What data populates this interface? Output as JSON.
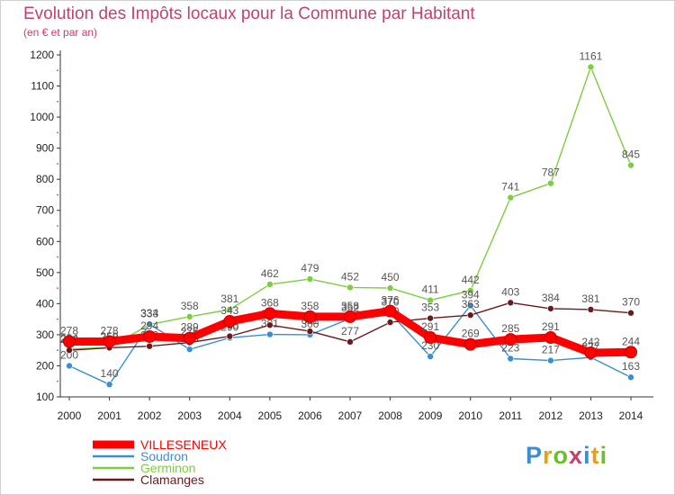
{
  "chart_data": {
    "type": "line",
    "title": "Evolution des Impôts locaux pour la Commune par Habitant",
    "subtitle": "(en € et par an)",
    "xlabel": "",
    "ylabel": "",
    "x": [
      "2000",
      "2001",
      "2002",
      "2003",
      "2004",
      "2005",
      "2006",
      "2007",
      "2008",
      "2009",
      "2010",
      "2011",
      "2012",
      "2013",
      "2014"
    ],
    "ylim": [
      100,
      1200
    ],
    "yticks": [
      100,
      200,
      300,
      400,
      500,
      600,
      700,
      800,
      900,
      1000,
      1100,
      1200
    ],
    "grid": false,
    "legend_position": "bottom-left",
    "series": [
      {
        "name": "VILLESENEUX",
        "color": "#ff0000",
        "values": [
          278,
          278,
          294,
          289,
          343,
          368,
          358,
          358,
          376,
          291,
          269,
          285,
          291,
          242,
          244
        ]
      },
      {
        "name": "Soudron",
        "color": "#3a8fd1",
        "values": [
          200,
          140,
          334,
          253,
          290,
          301,
          300,
          352,
          370,
          230,
          394,
          223,
          217,
          227,
          163
        ]
      },
      {
        "name": "Germinon",
        "color": "#7ccd3f",
        "values": [
          254,
          259,
          333,
          358,
          381,
          462,
          479,
          452,
          450,
          411,
          442,
          741,
          787,
          1161,
          845
        ]
      },
      {
        "name": "Clamanges",
        "color": "#6b1a1a",
        "values": [
          250,
          258,
          263,
          275,
          295,
          331,
          311,
          277,
          340,
          353,
          363,
          403,
          384,
          381,
          370
        ]
      }
    ]
  },
  "brand": {
    "logo_text": "Proxiti"
  }
}
